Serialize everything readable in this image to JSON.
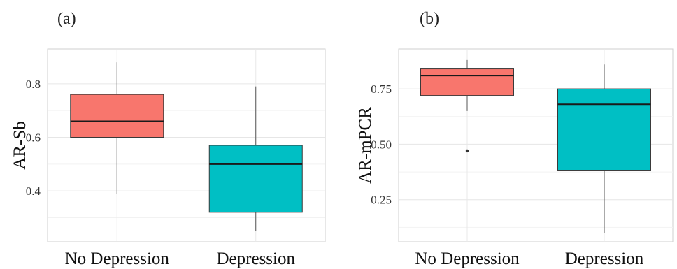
{
  "chart_data": [
    {
      "type": "box",
      "panel_label": "(a)",
      "ylabel": "AR-Sb",
      "xlabel": "",
      "categories": [
        "No Depression",
        "Depression"
      ],
      "ylim": [
        0.21,
        0.93
      ],
      "yticks": [
        0.4,
        0.6,
        0.8
      ],
      "ytick_labels": [
        "0.4",
        "0.6",
        "0.8"
      ],
      "grid": true,
      "colors": [
        "#F8766D",
        "#00BFC4"
      ],
      "boxes": [
        {
          "category": "No Depression",
          "min": 0.39,
          "q1": 0.6,
          "median": 0.66,
          "q3": 0.76,
          "max": 0.88,
          "outliers": []
        },
        {
          "category": "Depression",
          "min": 0.25,
          "q1": 0.32,
          "median": 0.5,
          "q3": 0.57,
          "max": 0.79,
          "outliers": []
        }
      ]
    },
    {
      "type": "box",
      "panel_label": "(b)",
      "ylabel": "AR-mPCR",
      "xlabel": "",
      "categories": [
        "No Depression",
        "Depression"
      ],
      "ylim": [
        0.06,
        0.93
      ],
      "yticks": [
        0.25,
        0.5,
        0.75
      ],
      "ytick_labels": [
        "0.25",
        "0.50",
        "0.75"
      ],
      "grid": true,
      "colors": [
        "#F8766D",
        "#00BFC4"
      ],
      "boxes": [
        {
          "category": "No Depression",
          "min": 0.65,
          "q1": 0.72,
          "median": 0.81,
          "q3": 0.84,
          "max": 0.88,
          "outliers": [
            0.47
          ]
        },
        {
          "category": "Depression",
          "min": 0.1,
          "q1": 0.38,
          "median": 0.68,
          "q3": 0.75,
          "max": 0.86,
          "outliers": []
        }
      ]
    }
  ]
}
